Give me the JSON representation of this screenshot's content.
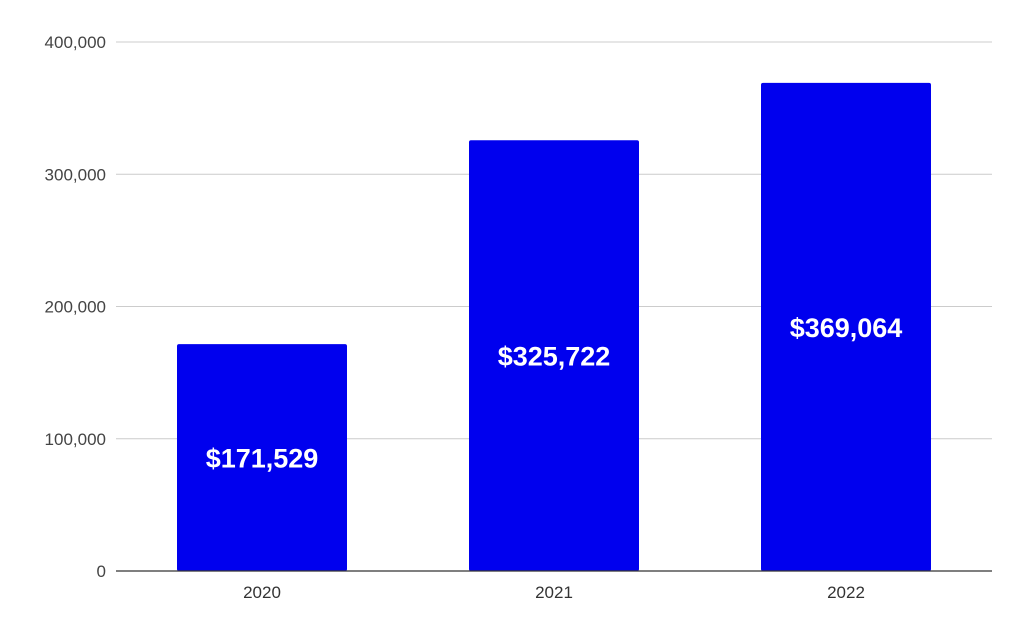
{
  "chart_data": {
    "type": "bar",
    "title": "",
    "xlabel": "",
    "ylabel": "",
    "categories": [
      "2020",
      "2021",
      "2022"
    ],
    "values": [
      171529,
      325722,
      369064
    ],
    "data_labels": [
      "$171,529",
      "$325,722",
      "$369,064"
    ],
    "ylim": [
      0,
      400000
    ],
    "yticks": [
      0,
      100000,
      200000,
      300000,
      400000
    ],
    "ytick_labels": [
      "0",
      "100,000",
      "200,000",
      "300,000",
      "400,000"
    ],
    "grid": true,
    "legend": "none",
    "bar_color": "#0000ee",
    "grid_color": "#cccccc",
    "axis_color": "#333333"
  }
}
